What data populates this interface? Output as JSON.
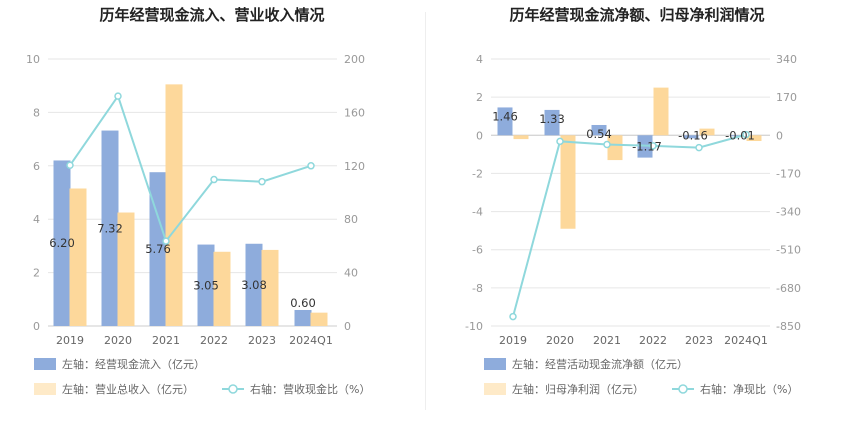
{
  "chart_data": [
    {
      "type": "bar+line",
      "title": "历年经营现金流入、营业收入情况",
      "categories": [
        "2019",
        "2020",
        "2021",
        "2022",
        "2023",
        "2024Q1"
      ],
      "left_axis": {
        "ylim": [
          0,
          10
        ],
        "ticks": [
          "0",
          "2",
          "4",
          "6",
          "8",
          "10"
        ]
      },
      "right_axis": {
        "ylim": [
          0,
          200
        ],
        "ticks": [
          "0",
          "40",
          "80",
          "120",
          "160",
          "200"
        ]
      },
      "series": [
        {
          "name": "左轴：经营现金流入（亿元）",
          "type": "bar",
          "axis": "left",
          "color": "#8eacdc",
          "values": [
            6.2,
            7.32,
            5.76,
            3.05,
            3.08,
            0.6
          ],
          "labels": [
            "6.20",
            "7.32",
            "5.76",
            "3.05",
            "3.08",
            "0.60"
          ]
        },
        {
          "name": "左轴：营业总收入（亿元）",
          "type": "bar",
          "axis": "left",
          "color": "#fdd89b",
          "values": [
            5.15,
            4.25,
            9.05,
            2.78,
            2.85,
            0.5
          ]
        },
        {
          "name": "右轴：营收现金比（%）",
          "type": "line",
          "axis": "right",
          "color": "#8fd8dc",
          "values": [
            120.4,
            172.2,
            63.6,
            109.7,
            108.1,
            120
          ]
        }
      ],
      "grid": true,
      "legend": "bottom"
    },
    {
      "type": "bar+line",
      "title": "历年经营现金流净额、归母净利润情况",
      "categories": [
        "2019",
        "2020",
        "2021",
        "2022",
        "2023",
        "2024Q1"
      ],
      "left_axis": {
        "ylim": [
          -10,
          4
        ],
        "ticks": [
          "-10",
          "-8",
          "-6",
          "-4",
          "-2",
          "0",
          "2",
          "4"
        ]
      },
      "right_axis": {
        "ylim": [
          -850,
          340
        ],
        "ticks": [
          "-850",
          "-680",
          "-510",
          "-340",
          "-170",
          "0",
          "170",
          "340"
        ]
      },
      "series": [
        {
          "name": "左轴：经营活动现金流净额（亿元）",
          "type": "bar",
          "axis": "left",
          "color": "#8eacdc",
          "values": [
            1.46,
            1.33,
            0.54,
            -1.17,
            -0.16,
            -0.01
          ],
          "labels": [
            "1.46",
            "1.33",
            "0.54",
            "-1.17",
            "-0.16",
            "-0.01"
          ]
        },
        {
          "name": "左轴：归母净利润（亿元）",
          "type": "bar",
          "axis": "left",
          "color": "#fdd89b",
          "values": [
            -0.2,
            -4.9,
            -1.3,
            2.5,
            0.35,
            -0.3
          ]
        },
        {
          "name": "右轴：净现比（%）",
          "type": "line",
          "axis": "right",
          "color": "#8fd8dc",
          "values": [
            -808,
            -27,
            -41,
            -47,
            -55,
            3
          ]
        }
      ],
      "grid": true,
      "legend": "bottom"
    }
  ]
}
